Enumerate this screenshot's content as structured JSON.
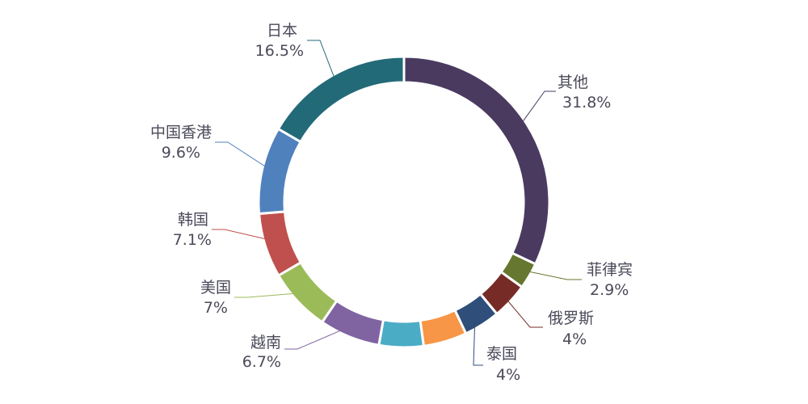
{
  "chart_data": {
    "type": "pie",
    "title": "",
    "style": "donut",
    "slices": [
      {
        "name": "其他",
        "value": 31.8,
        "label": "31.8%",
        "color": "#4a3a60"
      },
      {
        "name": "菲律宾",
        "value": 2.9,
        "label": "2.9%",
        "color": "#66772f"
      },
      {
        "name": "俄罗斯",
        "value": 4,
        "label": "4%",
        "color": "#772b27"
      },
      {
        "name": "泰国",
        "value": 4,
        "label": "4%",
        "color": "#2f4e7a"
      },
      {
        "name": "",
        "value": 4.8,
        "label": "",
        "color": "#f79646"
      },
      {
        "name": "",
        "value": 4.9,
        "label": "",
        "color": "#4bacc6"
      },
      {
        "name": "越南",
        "value": 6.7,
        "label": "6.7%",
        "color": "#8064a2"
      },
      {
        "name": "美国",
        "value": 7,
        "label": "7%",
        "color": "#9bbb59"
      },
      {
        "name": "韩国",
        "value": 7.1,
        "label": "7.1%",
        "color": "#c0504d"
      },
      {
        "name": "中国香港",
        "value": 9.6,
        "label": "9.6%",
        "color": "#4f81bd"
      },
      {
        "name": "日本",
        "value": 16.5,
        "label": "16.5%",
        "color": "#236a78"
      }
    ]
  }
}
